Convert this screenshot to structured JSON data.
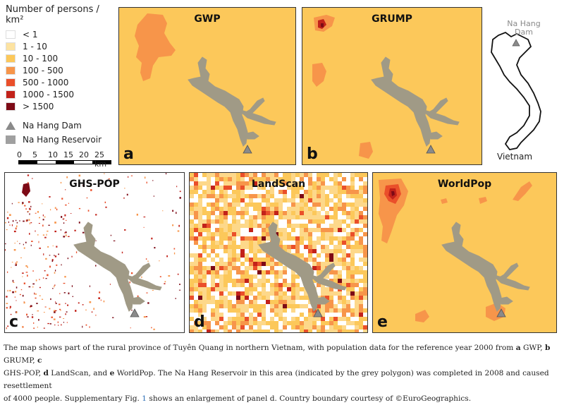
{
  "legend": {
    "title": "Number of persons / km²",
    "classes": [
      {
        "label": "< 1",
        "color": "#ffffff"
      },
      {
        "label": "1 - 10",
        "color": "#fde3a1"
      },
      {
        "label": "10 - 100",
        "color": "#fcc85a"
      },
      {
        "label": "100 - 500",
        "color": "#f7954a"
      },
      {
        "label": "500 - 1000",
        "color": "#ea4f2a"
      },
      {
        "label": "1000 - 1500",
        "color": "#c2221a"
      },
      {
        "label": "> 1500",
        "color": "#7d0a16"
      }
    ],
    "dam_label": "Na Hang Dam",
    "reservoir_label": "Na Hang Reservoir"
  },
  "scalebar": {
    "ticks": [
      "0",
      "5",
      "10",
      "15",
      "20",
      "25 km"
    ]
  },
  "panels": [
    {
      "letter": "a",
      "title": "GWP"
    },
    {
      "letter": "b",
      "title": "GRUMP"
    },
    {
      "letter": "c",
      "title": "GHS-POP"
    },
    {
      "letter": "d",
      "title": "LandScan"
    },
    {
      "letter": "e",
      "title": "WorldPop"
    }
  ],
  "inset": {
    "dam_label_line1": "Na Hang",
    "dam_label_line2": "Dam",
    "country_label": "Vietnam"
  },
  "caption": {
    "t1": "The map shows part of the rural province of Tuyên Quang in northern Vietnam, with population data for the reference year 2000 from ",
    "a": "a",
    "a_name": " GWP, ",
    "b": "b",
    "b_name": " GRUMP, ",
    "c": "c",
    "t2": "GHS-POP, ",
    "d": "d",
    "d_name": " LandScan, and ",
    "e": "e",
    "e_name": " WorldPop. The Na Hang Reservoir in this area (indicated by the grey polygon) was completed in 2008 and caused resettlement",
    "t3": "of 4000 people. Supplementary Fig. ",
    "fig_link": "1",
    "t4": " shows an enlargement of panel d. Country boundary courtesy of ©EuroGeographics."
  },
  "colors": {
    "reservoir": "#a09a86",
    "dam_marker": "#8a8a8a",
    "panel_base": "#fcc85a"
  }
}
